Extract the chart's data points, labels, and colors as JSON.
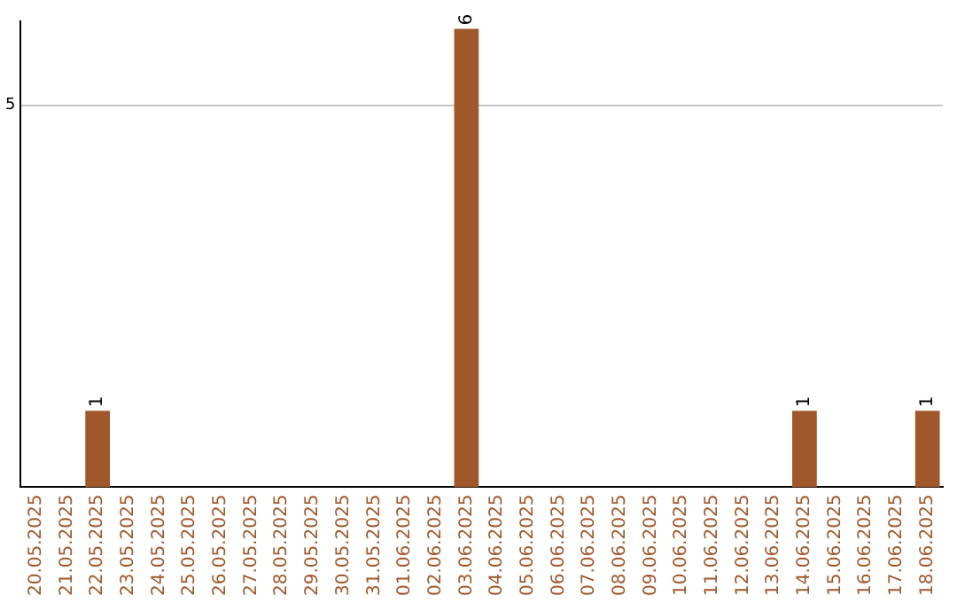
{
  "chart_data": {
    "type": "bar",
    "categories": [
      "20.05.2025",
      "21.05.2025",
      "22.05.2025",
      "23.05.2025",
      "24.05.2025",
      "25.05.2025",
      "26.05.2025",
      "27.05.2025",
      "28.05.2025",
      "29.05.2025",
      "30.05.2025",
      "31.05.2025",
      "01.06.2025",
      "02.06.2025",
      "03.06.2025",
      "04.06.2025",
      "05.06.2025",
      "06.06.2025",
      "07.06.2025",
      "08.06.2025",
      "09.06.2025",
      "10.06.2025",
      "11.06.2025",
      "12.06.2025",
      "13.06.2025",
      "14.06.2025",
      "15.06.2025",
      "16.06.2025",
      "17.06.2025",
      "18.06.2025"
    ],
    "values": [
      0,
      0,
      1,
      0,
      0,
      0,
      0,
      0,
      0,
      0,
      0,
      0,
      0,
      0,
      6,
      0,
      0,
      0,
      0,
      0,
      0,
      0,
      0,
      0,
      0,
      1,
      0,
      0,
      0,
      1
    ],
    "value_labels": [
      null,
      null,
      "1",
      null,
      null,
      null,
      null,
      null,
      null,
      null,
      null,
      null,
      null,
      null,
      "6",
      null,
      null,
      null,
      null,
      null,
      null,
      null,
      null,
      null,
      null,
      "1",
      null,
      null,
      null,
      "1"
    ],
    "color": "#a0572a",
    "ylim": [
      0,
      6.1
    ],
    "yticks": [
      5
    ],
    "grid": "y",
    "legend": false
  }
}
